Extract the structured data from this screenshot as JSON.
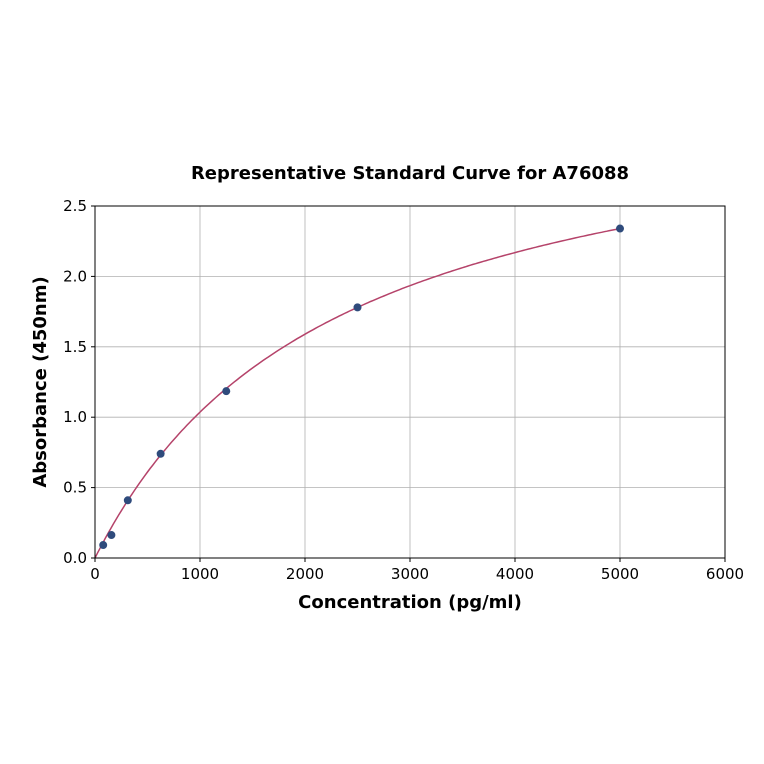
{
  "chart_data": {
    "type": "scatter",
    "title": "Representative Standard Curve for A76088",
    "xlabel": "Concentration (pg/ml)",
    "ylabel": "Absorbance (450nm)",
    "xlim": [
      0,
      6000
    ],
    "ylim": [
      0,
      2.5
    ],
    "xticks": [
      "0",
      "1000",
      "2000",
      "3000",
      "4000",
      "5000",
      "6000"
    ],
    "yticks": [
      "0.0",
      "0.5",
      "1.0",
      "1.5",
      "2.0",
      "2.5"
    ],
    "grid": true,
    "points": [
      {
        "x": 78.125,
        "y": 0.092
      },
      {
        "x": 156.25,
        "y": 0.163
      },
      {
        "x": 312.5,
        "y": 0.41
      },
      {
        "x": 625,
        "y": 0.74
      },
      {
        "x": 1250,
        "y": 1.185
      },
      {
        "x": 2500,
        "y": 1.78
      },
      {
        "x": 5000,
        "y": 2.34
      }
    ],
    "point_color": "#2f4b7c",
    "curve_color": "#b5436a"
  }
}
